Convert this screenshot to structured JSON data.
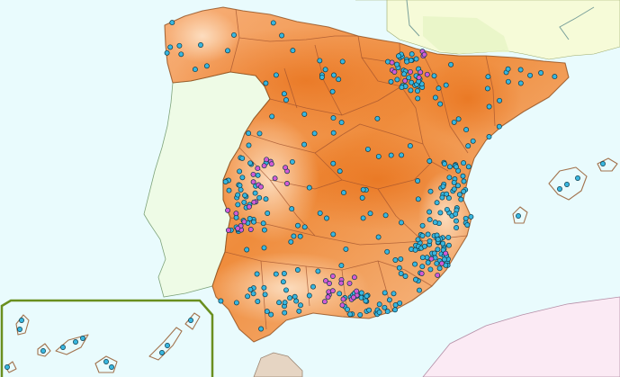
{
  "map": {
    "colors": {
      "sea": "#e9fbfd",
      "portugal": "#eefbe6",
      "france": "#f6fbd8",
      "africa": "#fbeaf4",
      "andorra_tint": "#e7f5c6",
      "spain_high": "#ea7a1e",
      "spain_mid": "#f4a86a",
      "spain_low": "#fbd3ae",
      "borders": "#a0522d",
      "inset_frame": "#6a8f1f",
      "ceuta_melilla": "#e6d5c3",
      "station_blue": "#38b6df",
      "station_magenta": "#d35bd6",
      "station_outline": "#0b3a4a"
    },
    "icons": {
      "station_marker": "circle-marker-icon"
    },
    "station_groups": [
      {
        "kind": "blue",
        "count": 364
      },
      {
        "kind": "magenta",
        "count": 58
      }
    ]
  }
}
